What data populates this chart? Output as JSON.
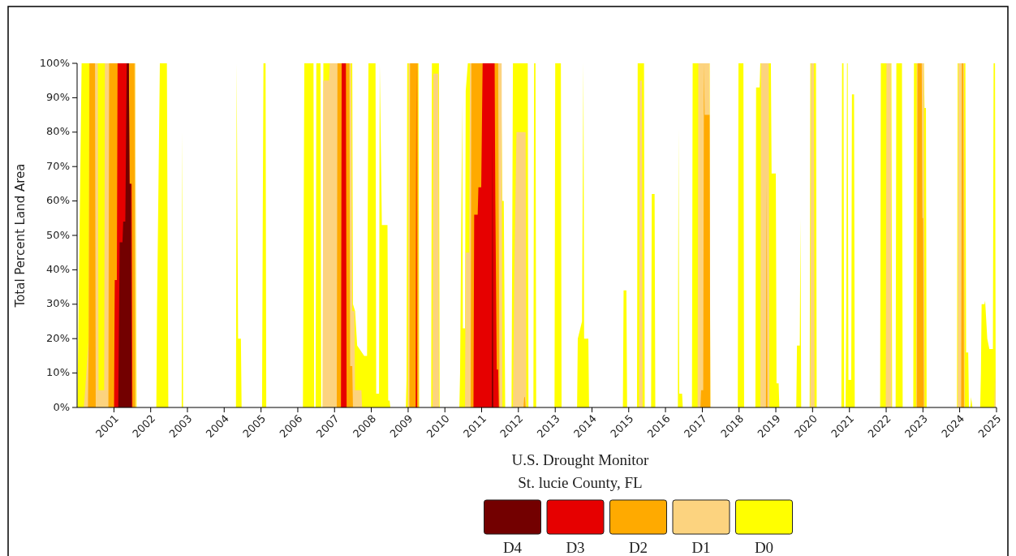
{
  "chart_data": {
    "type": "area",
    "title": "U.S. Drought Monitor",
    "subtitle": "St. lucie County, FL",
    "ylabel": "Total Percent Land Area",
    "legend": "bottom",
    "grid": false,
    "xlim": [
      "2000-01-01",
      "2025-01-01"
    ],
    "xticks": [
      {
        "value": "2001-01-01",
        "label": "2001"
      },
      {
        "value": "2002-01-01",
        "label": "2002"
      },
      {
        "value": "2003-01-01",
        "label": "2003"
      },
      {
        "value": "2004-01-01",
        "label": "2004"
      },
      {
        "value": "2005-01-01",
        "label": "2005"
      },
      {
        "value": "2006-01-01",
        "label": "2006"
      },
      {
        "value": "2007-01-01",
        "label": "2007"
      },
      {
        "value": "2008-01-01",
        "label": "2008"
      },
      {
        "value": "2009-01-01",
        "label": "2009"
      },
      {
        "value": "2010-01-01",
        "label": "2010"
      },
      {
        "value": "2011-01-01",
        "label": "2011"
      },
      {
        "value": "2012-01-01",
        "label": "2012"
      },
      {
        "value": "2013-01-01",
        "label": "2013"
      },
      {
        "value": "2014-01-01",
        "label": "2014"
      },
      {
        "value": "2015-01-01",
        "label": "2015"
      },
      {
        "value": "2016-01-01",
        "label": "2016"
      },
      {
        "value": "2017-01-01",
        "label": "2017"
      },
      {
        "value": "2018-01-01",
        "label": "2018"
      },
      {
        "value": "2019-01-01",
        "label": "2019"
      },
      {
        "value": "2020-01-01",
        "label": "2020"
      },
      {
        "value": "2021-01-01",
        "label": "2021"
      },
      {
        "value": "2022-01-01",
        "label": "2022"
      },
      {
        "value": "2023-01-01",
        "label": "2023"
      },
      {
        "value": "2024-01-01",
        "label": "2024"
      },
      {
        "value": "2025-01-01",
        "label": "2025"
      }
    ],
    "ylim": [
      0,
      100
    ],
    "yticks": [
      {
        "value": 0,
        "label": "0%"
      },
      {
        "value": 10,
        "label": "10%"
      },
      {
        "value": 20,
        "label": "20%"
      },
      {
        "value": 30,
        "label": "30%"
      },
      {
        "value": 40,
        "label": "40%"
      },
      {
        "value": 50,
        "label": "50%"
      },
      {
        "value": 60,
        "label": "60%"
      },
      {
        "value": 70,
        "label": "70%"
      },
      {
        "value": 80,
        "label": "80%"
      },
      {
        "value": 90,
        "label": "90%"
      },
      {
        "value": 100,
        "label": "100%"
      }
    ],
    "series": [
      {
        "name": "D4",
        "color": "#730000",
        "x": [
          "2001-02-13",
          "2001-02-27",
          "2001-03-27",
          "2001-04-03",
          "2001-04-24",
          "2001-05-08",
          "2001-05-29",
          "2001-06-05",
          "2001-06-19",
          "2001-06-26",
          "2011-04-12",
          "2011-04-19",
          "2011-04-26"
        ],
        "values": [
          0,
          48,
          48,
          54,
          54,
          100,
          100,
          65,
          65,
          0,
          0,
          80,
          0
        ]
      },
      {
        "name": "D3",
        "color": "#e60000",
        "x": [
          "2001-01-02",
          "2001-01-09",
          "2001-01-30",
          "2001-02-06",
          "2001-05-29",
          "2001-06-05",
          "2001-06-26",
          "2001-07-03",
          "2007-03-06",
          "2007-03-13",
          "2007-04-24",
          "2007-05-01",
          "2009-03-17",
          "2009-03-24",
          "2009-03-31",
          "2010-10-12",
          "2010-10-19",
          "2010-11-23",
          "2010-11-30",
          "2010-12-28",
          "2011-01-11",
          "2011-05-10",
          "2011-05-17",
          "2011-05-31",
          "2011-06-14",
          "2011-06-21"
        ],
        "values": [
          0,
          37,
          37,
          100,
          100,
          65,
          65,
          0,
          0,
          100,
          100,
          0,
          0,
          100,
          0,
          0,
          56,
          56,
          64,
          64,
          100,
          100,
          60,
          11,
          11,
          0
        ]
      },
      {
        "name": "D2",
        "color": "#ffaa00",
        "x": [
          "2000-04-18",
          "2000-04-25",
          "2000-05-02",
          "2000-06-27",
          "2000-07-04",
          "2000-11-07",
          "2000-11-14",
          "2001-07-24",
          "2001-07-31",
          "2007-01-23",
          "2007-01-30",
          "2007-05-29",
          "2007-06-05",
          "2007-06-26",
          "2007-07-03",
          "2009-01-13",
          "2009-01-20",
          "2009-04-07",
          "2009-04-14",
          "2010-09-14",
          "2010-09-21",
          "2011-06-14",
          "2011-06-28",
          "2012-02-21",
          "2012-02-28",
          "2012-03-06",
          "2012-03-13",
          "2016-12-13",
          "2016-12-20",
          "2017-01-10",
          "2017-01-17",
          "2017-01-24",
          "2017-03-14",
          "2017-03-21",
          "2018-09-25",
          "2018-10-02",
          "2018-10-09",
          "2022-11-01",
          "2022-11-08",
          "2022-12-20",
          "2022-12-27",
          "2023-01-03",
          "2023-01-10",
          "2024-01-16",
          "2024-01-23",
          "2024-02-06",
          "2024-02-13"
        ],
        "values": [
          0,
          20,
          100,
          100,
          0,
          0,
          100,
          100,
          0,
          0,
          100,
          100,
          12,
          12,
          0,
          0,
          100,
          100,
          0,
          0,
          100,
          100,
          0,
          0,
          3,
          3,
          0,
          0,
          5,
          5,
          100,
          85,
          85,
          0,
          0,
          66,
          0,
          0,
          100,
          100,
          55,
          55,
          0,
          0,
          100,
          100,
          0
        ]
      },
      {
        "name": "D1",
        "color": "#fcd37f",
        "x": [
          "2000-03-07",
          "2000-03-21",
          "2000-04-25",
          "2000-05-02",
          "2000-07-25",
          "2000-08-01",
          "2000-09-26",
          "2000-10-03",
          "2001-07-31",
          "2001-08-07",
          "2006-09-05",
          "2006-09-12",
          "2006-11-07",
          "2006-11-14",
          "2007-06-12",
          "2007-06-19",
          "2007-06-26",
          "2007-07-17",
          "2007-07-24",
          "2007-09-25",
          "2007-10-02",
          "2008-12-30",
          "2009-01-06",
          "2009-04-07",
          "2009-04-14",
          "2009-09-01",
          "2009-09-08",
          "2009-10-27",
          "2009-11-03",
          "2010-07-20",
          "2010-07-27",
          "2010-08-31",
          "2010-09-07",
          "2011-07-19",
          "2011-07-26",
          "2011-11-08",
          "2011-11-22",
          "2011-12-13",
          "2012-03-13",
          "2012-03-20",
          "2015-04-14",
          "2015-04-21",
          "2015-05-12",
          "2015-05-19",
          "2016-11-15",
          "2016-11-22",
          "2017-03-14",
          "2017-03-21",
          "2018-07-31",
          "2018-08-07",
          "2018-10-23",
          "2018-10-30",
          "2019-12-10",
          "2019-12-17",
          "2020-01-14",
          "2020-01-21",
          "2021-12-28",
          "2022-01-04",
          "2022-02-15",
          "2022-02-22",
          "2022-10-25",
          "2022-11-01",
          "2023-01-10",
          "2023-01-17",
          "2023-12-12",
          "2023-12-19",
          "2024-02-13",
          "2024-02-20",
          "2024-12-10",
          "2024-12-17",
          "2024-12-24"
        ],
        "values": [
          0,
          5,
          20,
          100,
          100,
          5,
          5,
          100,
          100,
          0,
          0,
          95,
          95,
          100,
          100,
          83,
          28,
          28,
          5,
          5,
          0,
          0,
          100,
          100,
          0,
          0,
          97,
          97,
          0,
          0,
          45,
          45,
          100,
          100,
          0,
          0,
          40,
          80,
          80,
          0,
          0,
          95,
          95,
          0,
          0,
          100,
          100,
          0,
          0,
          100,
          100,
          0,
          0,
          100,
          100,
          0,
          0,
          100,
          100,
          0,
          0,
          100,
          100,
          0,
          0,
          100,
          100,
          0,
          0,
          10,
          0
        ]
      },
      {
        "name": "D0",
        "color": "#ffff00",
        "x": [
          "2000-01-04",
          "2000-02-15",
          "2001-07-31",
          "2001-08-14",
          "2002-02-26",
          "2002-03-05",
          "2002-04-02",
          "2002-06-11",
          "2002-06-25",
          "2002-11-05",
          "2002-11-12",
          "2002-11-19",
          "2004-04-27",
          "2004-05-04",
          "2004-05-18",
          "2004-06-15",
          "2004-06-22",
          "2005-01-11",
          "2005-01-18",
          "2005-01-25",
          "2005-02-15",
          "2005-02-22",
          "2006-02-21",
          "2006-03-07",
          "2006-06-06",
          "2006-06-13",
          "2006-06-27",
          "2006-07-04",
          "2006-08-15",
          "2006-08-22",
          "2006-09-05",
          "2006-09-12",
          "2007-06-26",
          "2007-07-03",
          "2007-07-24",
          "2007-08-14",
          "2007-10-23",
          "2007-11-20",
          "2007-12-04",
          "2008-02-12",
          "2008-02-19",
          "2008-03-18",
          "2008-03-25",
          "2008-04-15",
          "2008-06-10",
          "2008-06-17",
          "2008-07-01",
          "2008-07-08",
          "2008-12-09",
          "2008-12-16",
          "2008-12-23",
          "2009-04-14",
          "2009-04-21",
          "2009-08-18",
          "2009-08-25",
          "2009-11-03",
          "2009-11-10",
          "2010-05-25",
          "2010-06-01",
          "2010-06-22",
          "2010-06-29",
          "2010-07-20",
          "2010-07-27",
          "2010-08-17",
          "2011-07-12",
          "2011-07-26",
          "2011-08-09",
          "2011-08-23",
          "2011-10-25",
          "2011-11-08",
          "2012-04-03",
          "2012-04-10",
          "2012-05-29",
          "2012-06-05",
          "2012-06-19",
          "2012-06-26",
          "2012-12-25",
          "2013-01-01",
          "2013-02-26",
          "2013-03-05",
          "2013-08-06",
          "2013-08-13",
          "2013-09-24",
          "2013-10-08",
          "2013-10-15",
          "2013-11-26",
          "2013-12-03",
          "2014-11-04",
          "2014-11-11",
          "2014-12-09",
          "2014-12-16",
          "2015-03-24",
          "2015-03-31",
          "2015-06-02",
          "2015-06-09",
          "2015-08-11",
          "2015-08-18",
          "2015-09-15",
          "2015-09-22",
          "2016-05-03",
          "2016-05-10",
          "2016-05-17",
          "2016-06-14",
          "2016-06-21",
          "2016-09-20",
          "2016-09-27",
          "2017-03-14",
          "2017-03-21",
          "2017-12-19",
          "2017-12-26",
          "2018-02-13",
          "2018-02-20",
          "2018-06-12",
          "2018-06-19",
          "2018-07-24",
          "2018-07-31",
          "2018-11-13",
          "2018-11-20",
          "2019-01-01",
          "2019-01-08",
          "2019-01-29",
          "2019-02-05",
          "2019-07-23",
          "2019-07-30",
          "2019-08-27",
          "2019-09-03",
          "2019-09-10",
          "2019-12-03",
          "2019-12-10",
          "2020-02-04",
          "2020-02-11",
          "2020-10-13",
          "2020-10-20",
          "2020-11-03",
          "2020-11-10",
          "2020-11-24",
          "2020-12-01",
          "2020-12-08",
          "2020-12-15",
          "2020-12-22",
          "2021-01-19",
          "2021-01-26",
          "2021-02-16",
          "2021-02-23",
          "2021-11-02",
          "2021-11-09",
          "2022-02-22",
          "2022-03-01",
          "2022-04-05",
          "2022-04-12",
          "2022-06-07",
          "2022-06-14",
          "2022-09-27",
          "2022-10-04",
          "2023-01-10",
          "2023-01-17",
          "2023-01-31",
          "2023-02-07",
          "2023-12-05",
          "2023-12-12",
          "2024-02-27",
          "2024-03-05",
          "2024-03-26",
          "2024-04-02",
          "2024-04-16",
          "2024-04-23",
          "2024-05-07",
          "2024-07-23",
          "2024-07-30",
          "2024-08-06",
          "2024-09-03",
          "2024-09-10",
          "2024-10-01",
          "2024-10-22",
          "2024-11-26",
          "2024-12-03",
          "2024-12-17",
          "2024-12-24"
        ],
        "values": [
          0,
          100,
          100,
          0,
          0,
          28,
          100,
          100,
          0,
          0,
          80,
          0,
          0,
          100,
          20,
          20,
          0,
          0,
          55,
          100,
          100,
          0,
          0,
          100,
          100,
          0,
          0,
          100,
          100,
          0,
          0,
          100,
          100,
          30,
          28,
          18,
          15,
          15,
          100,
          100,
          4,
          4,
          100,
          53,
          53,
          2,
          2,
          0,
          0,
          8,
          100,
          100,
          0,
          0,
          100,
          100,
          0,
          0,
          10,
          89,
          23,
          23,
          92,
          100,
          100,
          60,
          60,
          0,
          0,
          100,
          100,
          0,
          0,
          100,
          100,
          0,
          0,
          100,
          100,
          0,
          0,
          20,
          25,
          100,
          20,
          20,
          0,
          0,
          34,
          34,
          0,
          0,
          100,
          100,
          0,
          0,
          62,
          62,
          0,
          0,
          81,
          4,
          4,
          0,
          0,
          100,
          100,
          0,
          0,
          100,
          100,
          0,
          0,
          93,
          93,
          100,
          100,
          68,
          68,
          7,
          7,
          0,
          0,
          18,
          18,
          55,
          0,
          0,
          100,
          100,
          0,
          0,
          100,
          100,
          0,
          0,
          30,
          100,
          100,
          8,
          8,
          91,
          91,
          0,
          0,
          100,
          100,
          0,
          0,
          100,
          100,
          0,
          0,
          100,
          100,
          87,
          87,
          0,
          0,
          100,
          100,
          16,
          16,
          0,
          0,
          3,
          0,
          0,
          10,
          30,
          30,
          31,
          20,
          17,
          17,
          100,
          100,
          0
        ]
      }
    ]
  }
}
